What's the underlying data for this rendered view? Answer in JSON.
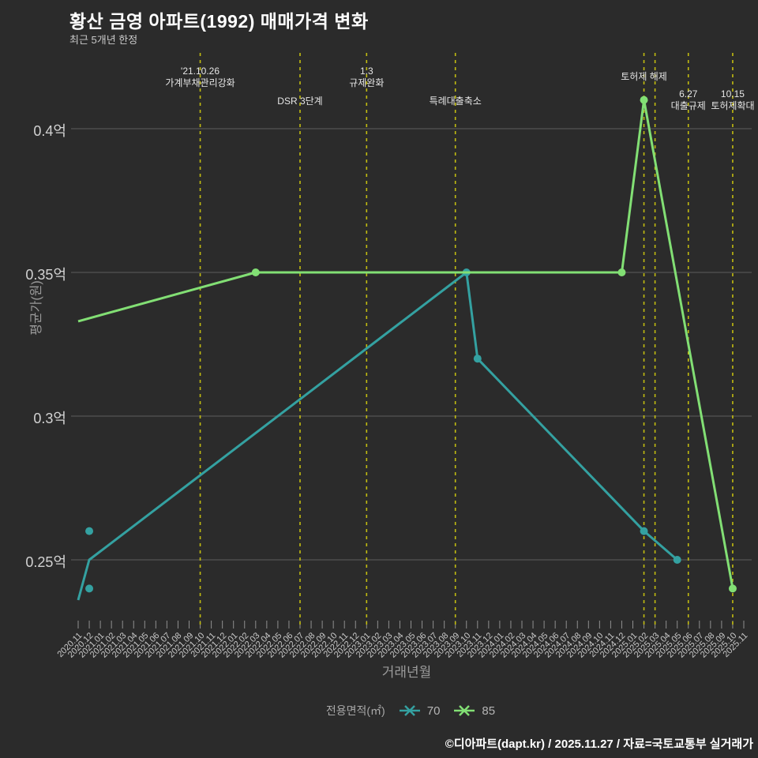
{
  "header": {
    "title": "황산 금영 아파트(1992) 매매가격 변화",
    "subtitle": "최근 5개년 한정"
  },
  "legend": {
    "title": "전용면적(㎡)",
    "items": [
      {
        "label": "70",
        "color_key": "series_70"
      },
      {
        "label": "85",
        "color_key": "series_85"
      }
    ]
  },
  "footer": {
    "text": "©디아파트(dapt.kr) / 2025.11.27 / 자료=국토교통부 실거래가"
  },
  "colors": {
    "background": "#2b2b2b",
    "grid": "#5e5e5e",
    "tick": "#8f8f8f",
    "event_line": "#c2bc10",
    "series_70": "#34a1a1",
    "series_85": "#82df74"
  },
  "chart_data": {
    "type": "line",
    "title": "황산 금영 아파트(1992) 매매가격 변화",
    "subtitle": "최근 5개년 한정",
    "xlabel": "거래년월",
    "ylabel": "평균가(원)",
    "unit": "억",
    "ylim": [
      0.225,
      0.425
    ],
    "grid": "horizontal",
    "legend_position": "bottom",
    "y_ticks": [
      {
        "value": 0.25,
        "label": "0.25억"
      },
      {
        "value": 0.3,
        "label": "0.3억"
      },
      {
        "value": 0.35,
        "label": "0.35억"
      },
      {
        "value": 0.4,
        "label": "0.4억"
      }
    ],
    "categories": [
      "2020.11",
      "2020.12",
      "2021.01",
      "2021.02",
      "2021.03",
      "2021.04",
      "2021.05",
      "2021.06",
      "2021.07",
      "2021.08",
      "2021.09",
      "2021.10",
      "2021.11",
      "2021.12",
      "2022.01",
      "2022.02",
      "2022.03",
      "2022.04",
      "2022.05",
      "2022.06",
      "2022.07",
      "2022.08",
      "2022.09",
      "2022.10",
      "2022.11",
      "2022.12",
      "2023.01",
      "2023.02",
      "2023.03",
      "2023.04",
      "2023.05",
      "2023.06",
      "2023.07",
      "2023.08",
      "2023.09",
      "2023.10",
      "2023.11",
      "2023.12",
      "2024.01",
      "2024.02",
      "2024.03",
      "2024.04",
      "2024.05",
      "2024.06",
      "2024.07",
      "2024.08",
      "2024.09",
      "2024.10",
      "2024.11",
      "2024.12",
      "2025.01",
      "2025.02",
      "2025.03",
      "2025.04",
      "2025.05",
      "2025.06",
      "2025.07",
      "2025.08",
      "2025.09",
      "2025.10",
      "2025.11"
    ],
    "series": [
      {
        "name": "70",
        "color_key": "series_70",
        "points": [
          [
            "2020.11",
            0.236
          ],
          [
            "2020.12",
            0.25
          ],
          [
            "2023.10",
            0.35
          ],
          [
            "2023.11",
            0.32
          ],
          [
            "2025.02",
            0.26
          ],
          [
            "2025.05",
            0.25
          ]
        ],
        "marker_points": [
          [
            "2023.10",
            0.35
          ],
          [
            "2023.11",
            0.32
          ],
          [
            "2025.02",
            0.26
          ],
          [
            "2025.05",
            0.25
          ]
        ]
      },
      {
        "name": "85",
        "color_key": "series_85",
        "points": [
          [
            "2020.11",
            0.333
          ],
          [
            "2022.03",
            0.35
          ],
          [
            "2024.12",
            0.35
          ],
          [
            "2025.02",
            0.41
          ],
          [
            "2025.10",
            0.24
          ]
        ],
        "marker_points": [
          [
            "2022.03",
            0.35
          ],
          [
            "2024.12",
            0.35
          ],
          [
            "2025.02",
            0.41
          ],
          [
            "2025.10",
            0.24
          ]
        ]
      }
    ],
    "scatter_points": [
      {
        "series": "70",
        "month": "2020.12",
        "value": 0.26
      },
      {
        "series": "70",
        "month": "2020.12",
        "value": 0.24
      }
    ],
    "events": [
      {
        "month": "2021.10",
        "lines": [
          "'21.10.26",
          "가계부채관리강화"
        ],
        "row": "top"
      },
      {
        "month": "2022.07",
        "lines": [
          "DSR 3단계"
        ],
        "row": "mid"
      },
      {
        "month": "2023.01",
        "lines": [
          "1.3",
          "규제완화"
        ],
        "row": "top"
      },
      {
        "month": "2023.09",
        "lines": [
          "특례대출축소"
        ],
        "row": "mid"
      },
      {
        "month": "2025.02",
        "lines": [
          "토허제 해제"
        ],
        "row": "single"
      },
      {
        "month": "2025.03",
        "lines": [],
        "row": "single"
      },
      {
        "month": "2025.06",
        "lines": [
          "6.27",
          "대출규제"
        ],
        "row": "low"
      },
      {
        "month": "2025.10",
        "lines": [
          "10.15",
          "토허제확대"
        ],
        "row": "low"
      }
    ]
  }
}
